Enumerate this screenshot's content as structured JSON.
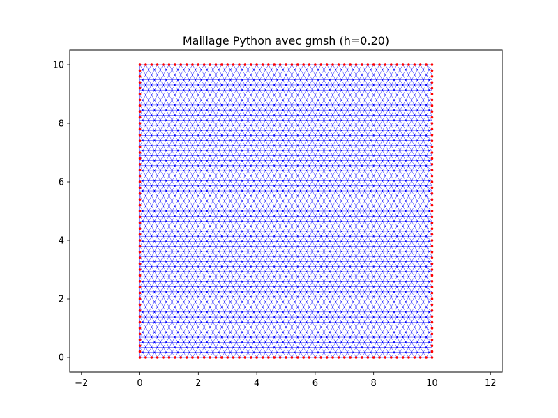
{
  "chart_data": {
    "type": "scatter",
    "title": "Maillage Python avec gmsh (h=0.20)",
    "xlabel": "",
    "ylabel": "",
    "xlim": [
      -2.4,
      12.4
    ],
    "ylim": [
      -0.5,
      10.5
    ],
    "xticks": [
      -2,
      0,
      2,
      4,
      6,
      8,
      10,
      12
    ],
    "yticks": [
      0,
      2,
      4,
      6,
      8,
      10
    ],
    "xtick_labels": [
      "−2",
      "0",
      "2",
      "4",
      "6",
      "8",
      "10",
      "12"
    ],
    "ytick_labels": [
      "0",
      "2",
      "4",
      "6",
      "8",
      "10"
    ],
    "grid": false,
    "legend": null,
    "domain": {
      "xmin": 0,
      "xmax": 10,
      "ymin": 0,
      "ymax": 10
    },
    "mesh_size": 0.2,
    "boundary_points_per_side": 51,
    "series": [
      {
        "role": "interior",
        "marker": "dot",
        "color": "#0000ff"
      },
      {
        "role": "boundary",
        "marker": "dot",
        "color": "#ff0000"
      }
    ],
    "edge_color": "#0000ff"
  }
}
